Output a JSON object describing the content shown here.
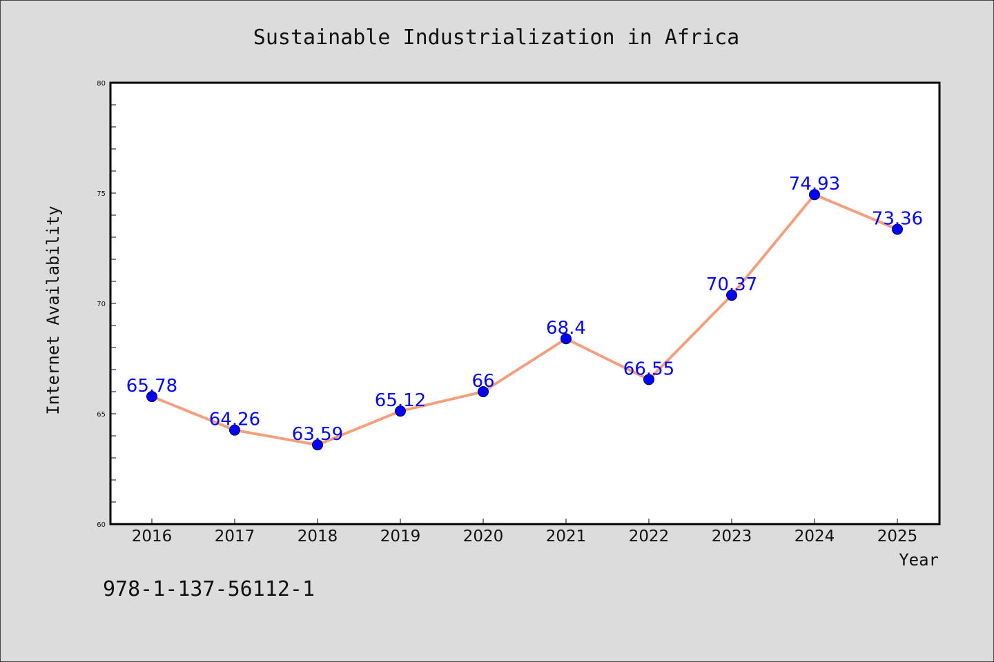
{
  "chart_data": {
    "type": "line",
    "title": "Sustainable Industrialization in Africa",
    "xlabel": "Year",
    "ylabel": "Internet Availability",
    "x": [
      "2016",
      "2017",
      "2018",
      "2019",
      "2020",
      "2021",
      "2022",
      "2023",
      "2024",
      "2025"
    ],
    "series": [
      {
        "values": [
          65.78,
          64.26,
          63.59,
          65.12,
          66,
          68.4,
          66.55,
          70.37,
          74.93,
          73.36
        ]
      }
    ],
    "ylim": [
      60,
      80
    ],
    "yticks": [
      60,
      65,
      70,
      75,
      80
    ],
    "data_labels": [
      "65.78",
      "64.26",
      "63.59",
      "65.12",
      "66",
      "68.4",
      "66.55",
      "70.37",
      "74.93",
      "73.36"
    ],
    "grid": false,
    "legend": "none"
  },
  "annotation": {
    "code": "978-1-137-56112-1"
  },
  "colors": {
    "background": "#dcdcdc",
    "plot_background": "#ffffff",
    "line": "#f4a07e",
    "marker": "#0000ff",
    "data_label": "#0000ff",
    "axis": "#000000"
  }
}
